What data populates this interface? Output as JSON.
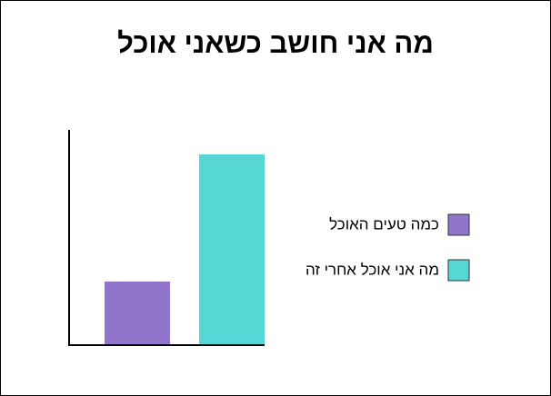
{
  "chart_data": {
    "type": "bar",
    "title": "מה אני חושב כשאני אוכל",
    "categories": [
      null
    ],
    "series": [
      {
        "name": "כמה טעים האוכל",
        "color": "#9174cc",
        "values": [
          70
        ]
      },
      {
        "name": "מה אני אוכל אחרי זה",
        "color": "#56d6d4",
        "values": [
          210
        ]
      }
    ],
    "ylim": [
      0,
      237
    ],
    "legend": "right"
  }
}
